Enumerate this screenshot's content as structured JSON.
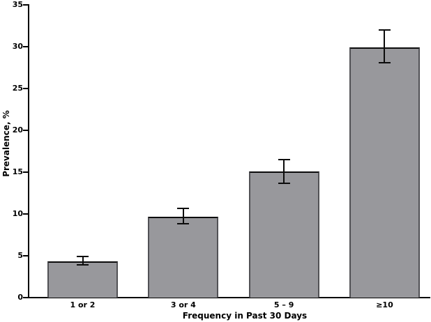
{
  "figure": {
    "background": "#ffffff"
  },
  "chart_data": {
    "type": "bar",
    "title": "",
    "xlabel": "Frequency in Past 30 Days",
    "ylabel": "Prevalence, %",
    "categories": [
      "1 or 2",
      "3 or 4",
      "5 – 9",
      "≥10"
    ],
    "series": [
      {
        "name": "Prevalence",
        "values": [
          4.3,
          9.7,
          15.1,
          29.9
        ],
        "error_low": [
          3.9,
          8.8,
          13.7,
          28.1
        ],
        "error_high": [
          4.9,
          10.7,
          16.5,
          32.0
        ]
      }
    ],
    "ylim": [
      0,
      35
    ],
    "yticks": [
      0,
      5,
      10,
      15,
      20,
      25,
      30,
      35
    ],
    "grid": false,
    "legend": "none",
    "bar_color": "#98989c",
    "bar_top_edge_color": "#0c0c0c",
    "bar_side_edge_color": "#515155",
    "error_bar_color": "#0c0c0c",
    "axis_color": "#000000"
  }
}
